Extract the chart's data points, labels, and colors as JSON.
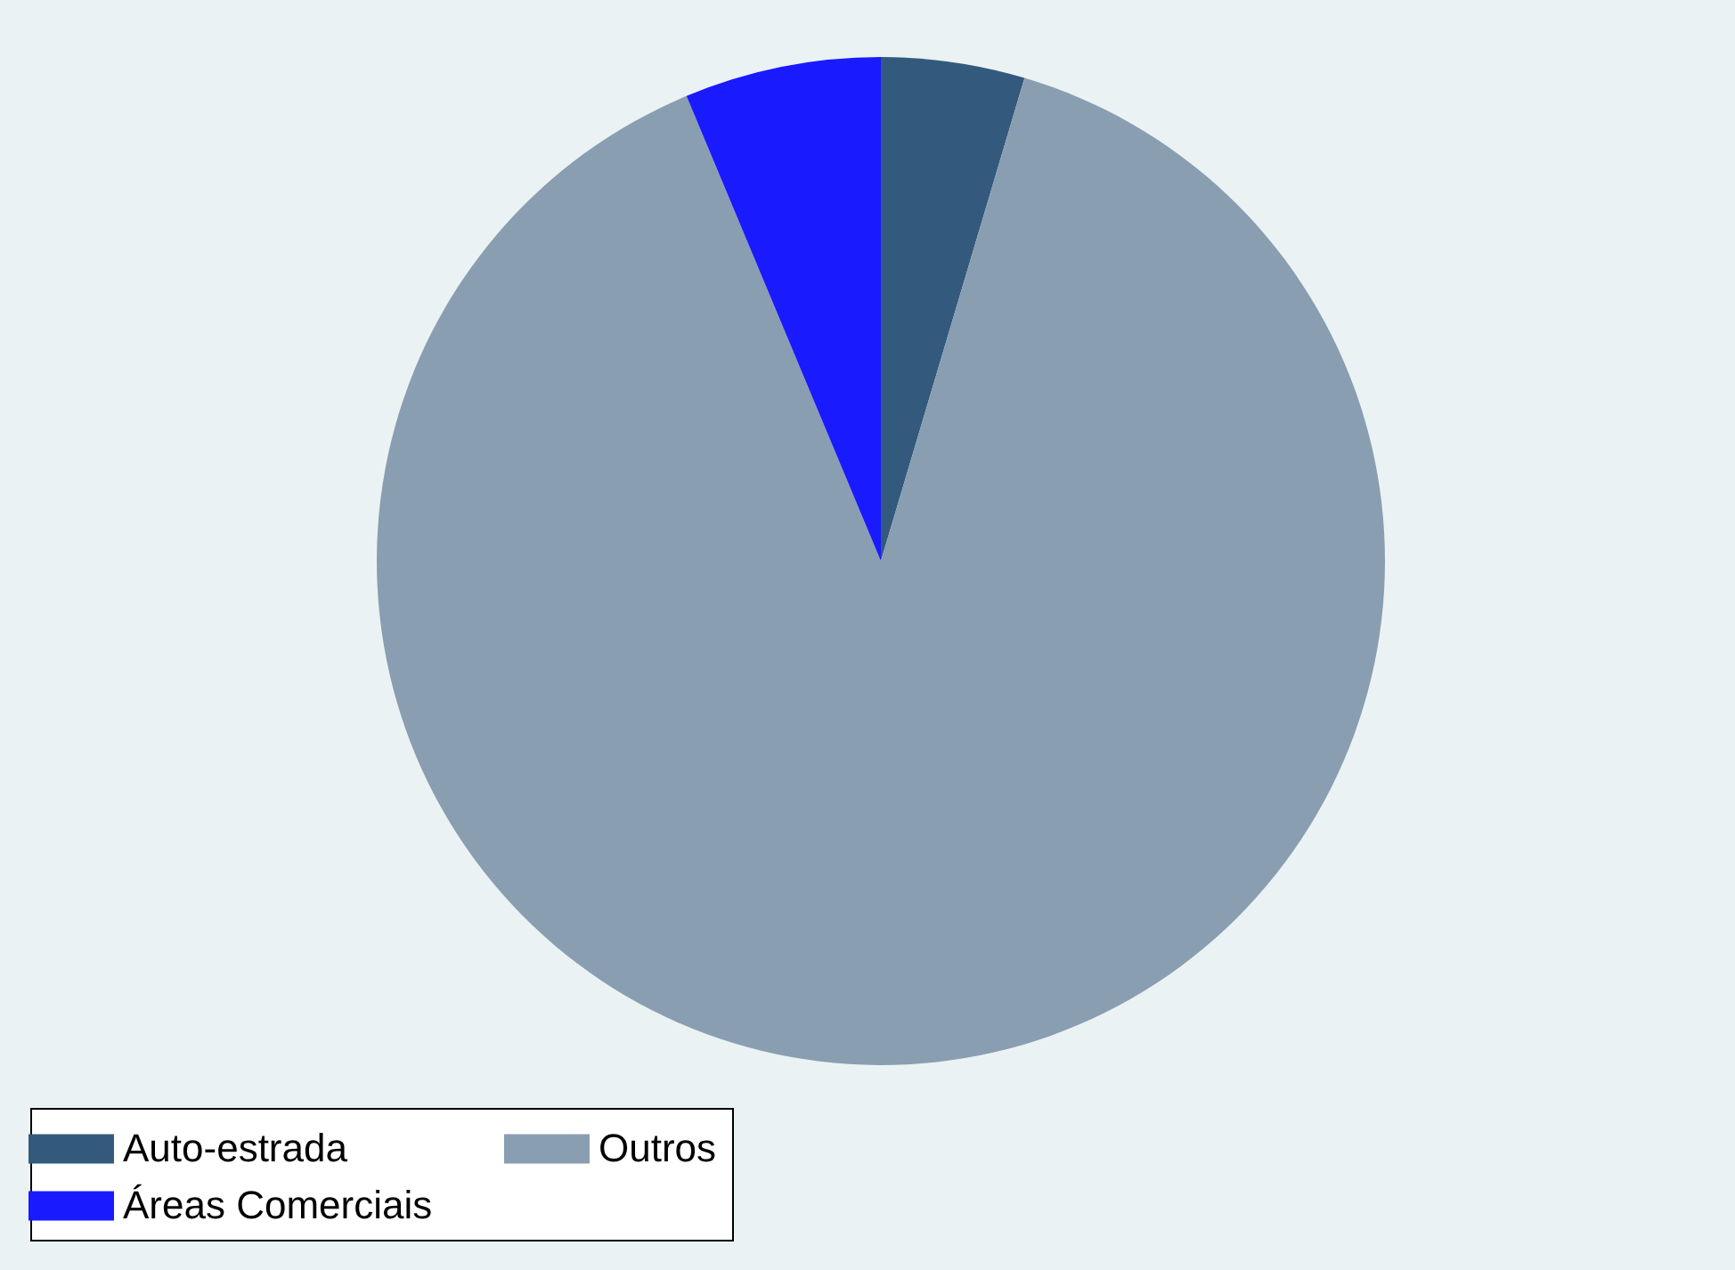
{
  "chart_data": {
    "type": "pie",
    "categories": [
      "Auto-estrada",
      "Outros",
      "Áreas Comerciais"
    ],
    "values": [
      4.6,
      89.1,
      6.3
    ],
    "colors": [
      "#335a7d",
      "#8a9eb2",
      "#1a1aff"
    ],
    "legend": "bottom"
  }
}
